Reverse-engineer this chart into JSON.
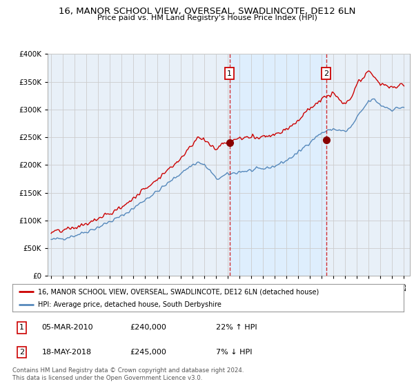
{
  "title": "16, MANOR SCHOOL VIEW, OVERSEAL, SWADLINCOTE, DE12 6LN",
  "subtitle": "Price paid vs. HM Land Registry's House Price Index (HPI)",
  "legend_line1": "16, MANOR SCHOOL VIEW, OVERSEAL, SWADLINCOTE, DE12 6LN (detached house)",
  "legend_line2": "HPI: Average price, detached house, South Derbyshire",
  "sale1_date": "05-MAR-2010",
  "sale1_price": "£240,000",
  "sale1_hpi": "22% ↑ HPI",
  "sale1_year": 2010.17,
  "sale1_value": 240000,
  "sale2_date": "18-MAY-2018",
  "sale2_price": "£245,000",
  "sale2_hpi": "7% ↓ HPI",
  "sale2_year": 2018.38,
  "sale2_value": 245000,
  "red_color": "#cc0000",
  "blue_color": "#5588bb",
  "shade_color": "#ddeeff",
  "background_color": "#e8f0f8",
  "grid_color": "#cccccc",
  "footer": "Contains HM Land Registry data © Crown copyright and database right 2024.\nThis data is licensed under the Open Government Licence v3.0.",
  "ylim": [
    0,
    400000
  ],
  "xlim_start": 1994.7,
  "xlim_end": 2025.5
}
